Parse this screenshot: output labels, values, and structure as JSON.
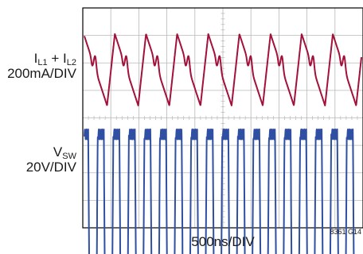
{
  "chart_data": {
    "type": "line",
    "subtype": "oscilloscope-capture",
    "x_label": "500ns/DIV",
    "grid": true,
    "divisions": {
      "horizontal": 10,
      "vertical": 8
    },
    "colors": {
      "inductor_current": "#a3103a",
      "switch_voltage": "#2f4fa3",
      "grid": "#b8b8b8",
      "frame": "#000000"
    },
    "series": [
      {
        "key": "inductor_current",
        "label_main": "I",
        "sub1": "L1",
        "mid": " + I",
        "sub2": "L2",
        "scale": "200mA/DIV",
        "waveform": "triangle with ripple",
        "cycles_shown": 9,
        "peak_to_peak_div": 2.6
      },
      {
        "key": "switch_voltage",
        "label_main": "V",
        "sub1": "SW",
        "scale": "20V/DIV",
        "waveform": "rectangular switching",
        "cycles_shown": 18,
        "peak_to_peak_div": 4.6
      }
    ],
    "figure_code": "8361 G14"
  }
}
